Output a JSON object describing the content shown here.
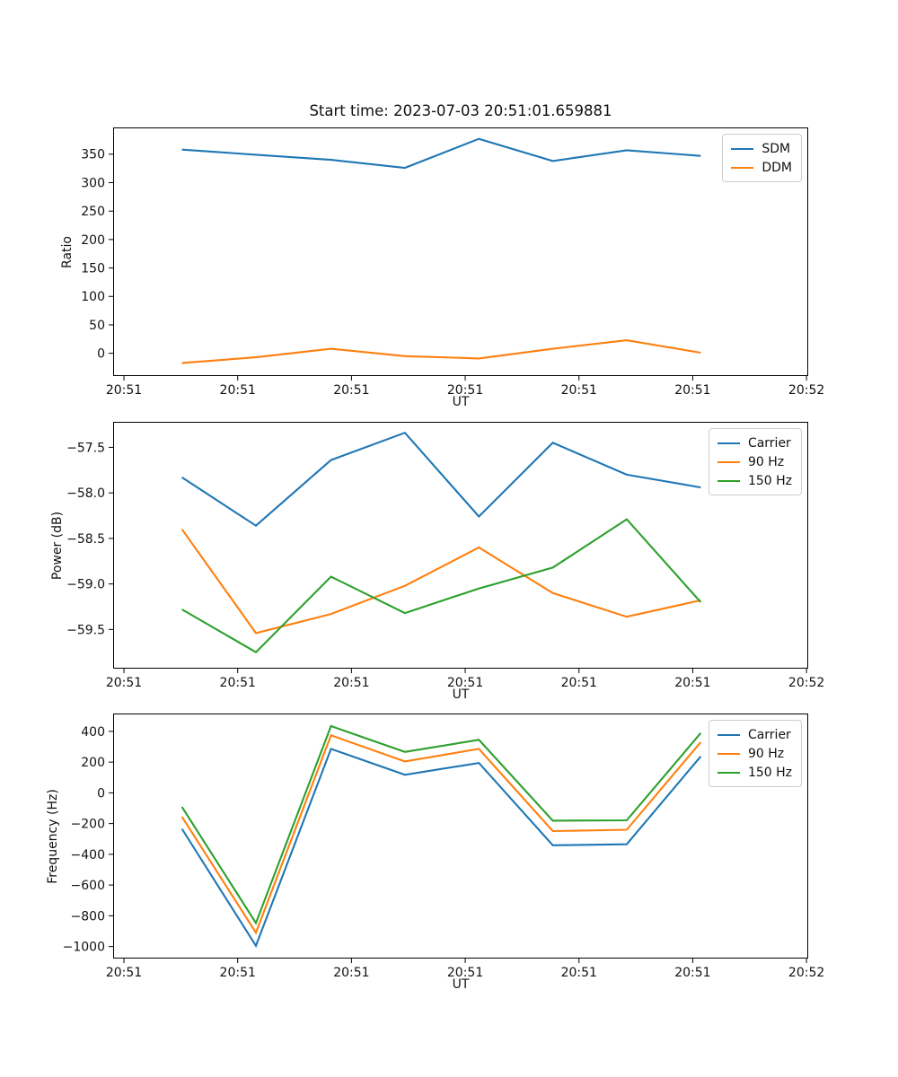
{
  "figure_title": "Start time: 2023-07-03 20:51:01.659881",
  "colors": {
    "blue": "#1f77b4",
    "orange": "#ff7f0e",
    "green": "#2ca02c"
  },
  "chart_data": [
    {
      "type": "line",
      "title": "Start time: 2023-07-03 20:51:01.659881",
      "xlabel": "UT",
      "ylabel": "Ratio",
      "x_unit": "seconds after 20:51:00",
      "x_seconds": [
        5.1,
        11.6,
        18.2,
        24.7,
        31.2,
        37.7,
        44.2,
        50.7
      ],
      "xlim": [
        -0.95,
        60.15
      ],
      "ylim": [
        -40,
        397
      ],
      "xtick_values": [
        0,
        10,
        20,
        30,
        40,
        50,
        60
      ],
      "xtick_labels": [
        "20:51",
        "20:51",
        "20:51",
        "20:51",
        "20:51",
        "20:51",
        "20:52"
      ],
      "ytick_values": [
        0,
        50,
        100,
        150,
        200,
        250,
        300,
        350
      ],
      "ytick_labels": [
        "0",
        "50",
        "100",
        "150",
        "200",
        "250",
        "300",
        "350"
      ],
      "grid": false,
      "legend_position": "upper right",
      "series": [
        {
          "name": "SDM",
          "color": "#1f77b4",
          "values": [
            358,
            349,
            340,
            326,
            377,
            338,
            357,
            347
          ]
        },
        {
          "name": "DDM",
          "color": "#ff7f0e",
          "values": [
            -17,
            -7,
            8,
            -5,
            -9,
            8,
            23,
            1
          ]
        }
      ]
    },
    {
      "type": "line",
      "title": "",
      "xlabel": "UT",
      "ylabel": "Power (dB)",
      "x_unit": "seconds after 20:51:00",
      "x_seconds": [
        5.1,
        11.6,
        18.2,
        24.7,
        31.2,
        37.7,
        44.2,
        50.7
      ],
      "xlim": [
        -0.95,
        60.15
      ],
      "ylim": [
        -59.93,
        -57.22
      ],
      "xtick_values": [
        0,
        10,
        20,
        30,
        40,
        50,
        60
      ],
      "xtick_labels": [
        "20:51",
        "20:51",
        "20:51",
        "20:51",
        "20:51",
        "20:51",
        "20:52"
      ],
      "ytick_values": [
        -57.5,
        -58.0,
        -58.5,
        -59.0,
        -59.5
      ],
      "ytick_labels": [
        "−57.5",
        "−58.0",
        "−58.5",
        "−59.0",
        "−59.5"
      ],
      "grid": false,
      "legend_position": "upper right",
      "series": [
        {
          "name": "Carrier",
          "color": "#1f77b4",
          "values": [
            -57.83,
            -58.36,
            -57.64,
            -57.34,
            -58.26,
            -57.45,
            -57.8,
            -57.94
          ]
        },
        {
          "name": "90 Hz",
          "color": "#ff7f0e",
          "values": [
            -58.4,
            -59.54,
            -59.33,
            -59.02,
            -58.6,
            -59.1,
            -59.36,
            -59.18
          ]
        },
        {
          "name": "150 Hz",
          "color": "#2ca02c",
          "values": [
            -59.28,
            -59.75,
            -58.92,
            -59.32,
            -59.05,
            -58.82,
            -58.29,
            -59.2
          ]
        }
      ]
    },
    {
      "type": "line",
      "title": "",
      "xlabel": "UT",
      "ylabel": "Frequency (Hz)",
      "x_unit": "seconds after 20:51:00",
      "x_seconds": [
        5.1,
        11.6,
        18.2,
        24.7,
        31.2,
        37.7,
        44.2,
        50.7
      ],
      "xlim": [
        -0.95,
        60.15
      ],
      "ylim": [
        -1078,
        516
      ],
      "xtick_values": [
        0,
        10,
        20,
        30,
        40,
        50,
        60
      ],
      "xtick_labels": [
        "20:51",
        "20:51",
        "20:51",
        "20:51",
        "20:51",
        "20:51",
        "20:52"
      ],
      "ytick_values": [
        400,
        200,
        0,
        -200,
        -400,
        -600,
        -800,
        -1000
      ],
      "ytick_labels": [
        "400",
        "200",
        "0",
        "−200",
        "−400",
        "−600",
        "−800",
        "−1000"
      ],
      "grid": false,
      "legend_position": "upper right",
      "series": [
        {
          "name": "Carrier",
          "color": "#1f77b4",
          "values": [
            -234,
            -995,
            286,
            117,
            194,
            -341,
            -335,
            237
          ]
        },
        {
          "name": "90 Hz",
          "color": "#ff7f0e",
          "values": [
            -156,
            -910,
            374,
            204,
            286,
            -249,
            -240,
            330
          ]
        },
        {
          "name": "150 Hz",
          "color": "#2ca02c",
          "values": [
            -92,
            -847,
            434,
            266,
            345,
            -181,
            -179,
            389
          ]
        }
      ]
    }
  ]
}
